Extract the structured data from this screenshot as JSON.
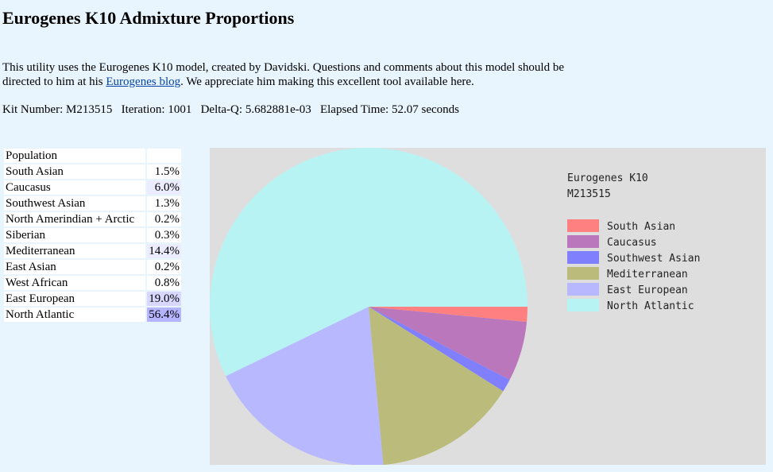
{
  "title": "Eurogenes K10 Admixture Proportions",
  "intro": {
    "text_before": "This utility uses the Eurogenes K10 model, created by Davidski. Questions and comments about this model should be directed to him at his ",
    "link_text": "Eurogenes blog",
    "text_after": ". We appreciate him making this excellent tool available here."
  },
  "stats": {
    "kit_label": "Kit Number:",
    "kit_value": "M213515",
    "iteration_label": "Iteration:",
    "iteration_value": "1001",
    "delta_label": "Delta-Q:",
    "delta_value": "5.682881e-03",
    "elapsed_label": "Elapsed Time:",
    "elapsed_value": "52.07 seconds"
  },
  "table": {
    "header": "Population",
    "rows": [
      {
        "name": "South Asian",
        "pct": "1.5%"
      },
      {
        "name": "Caucasus",
        "pct": "6.0%"
      },
      {
        "name": "Southwest Asian",
        "pct": "1.3%"
      },
      {
        "name": "North Amerindian + Arctic",
        "pct": "0.2%"
      },
      {
        "name": "Siberian",
        "pct": "0.3%"
      },
      {
        "name": "Mediterranean",
        "pct": "14.4%"
      },
      {
        "name": "East Asian",
        "pct": "0.2%"
      },
      {
        "name": "West African",
        "pct": "0.8%"
      },
      {
        "name": "East European",
        "pct": "19.0%"
      },
      {
        "name": "North Atlantic",
        "pct": "56.4%"
      }
    ]
  },
  "chart_data": {
    "type": "pie",
    "title": "Eurogenes K10",
    "subtitle": "M213515",
    "legend_placement": "top-right",
    "slices": [
      {
        "name": "South Asian",
        "value": 1.5,
        "color": "#ff8080"
      },
      {
        "name": "Caucasus",
        "value": 6.0,
        "color": "#bb77bb"
      },
      {
        "name": "Southwest Asian",
        "value": 1.3,
        "color": "#8080ff"
      },
      {
        "name": "Mediterranean",
        "value": 14.4,
        "color": "#bbbb7b"
      },
      {
        "name": "East European",
        "value": 19.0,
        "color": "#b8b8ff"
      },
      {
        "name": "North Atlantic",
        "value": 56.4,
        "color": "#b8f3f3"
      }
    ]
  }
}
